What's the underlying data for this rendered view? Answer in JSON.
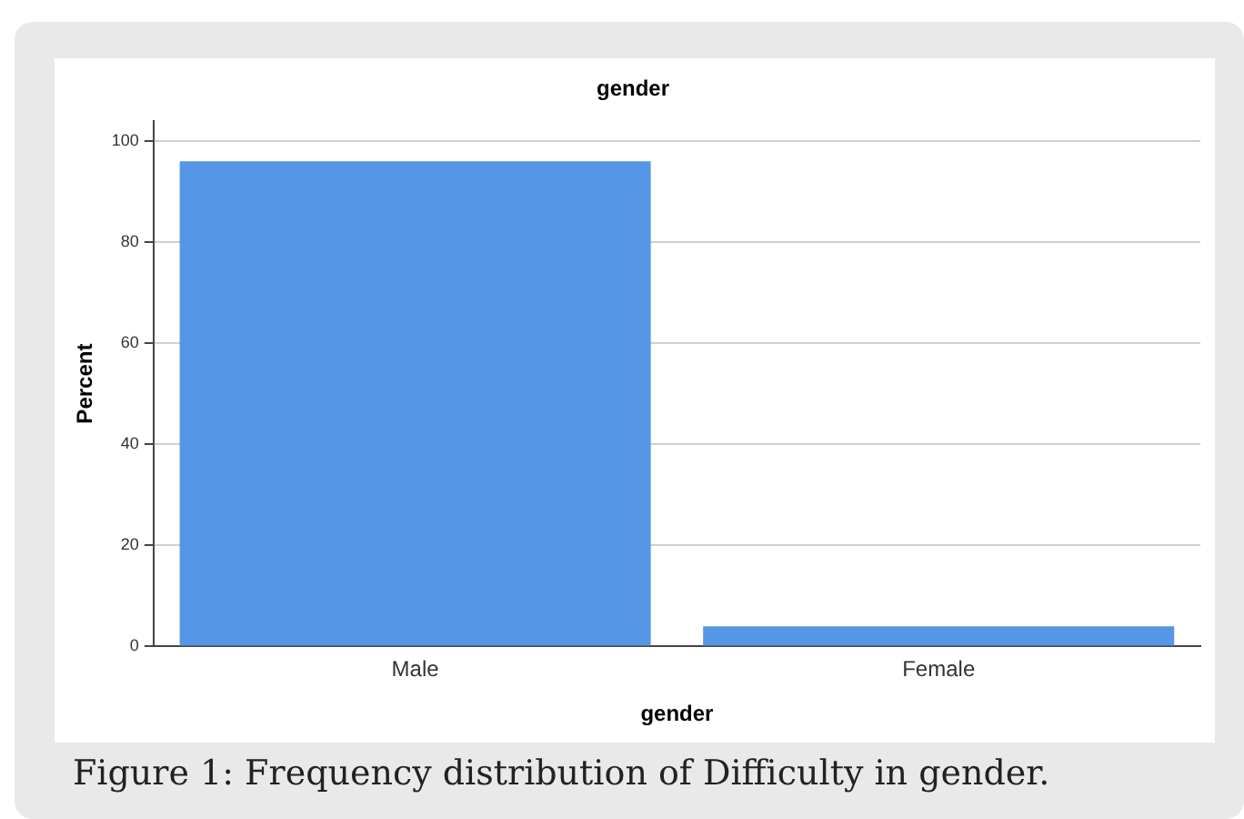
{
  "chart_data": {
    "type": "bar",
    "title": "gender",
    "xlabel": "gender",
    "ylabel": "Percent",
    "categories": [
      "Male",
      "Female"
    ],
    "values": [
      96,
      4
    ],
    "color": "#5596e6",
    "ylim": [
      0,
      104
    ],
    "yticks": [
      0,
      20,
      40,
      60,
      80,
      100
    ],
    "grid": "y",
    "annotations": [
      "Figure 1: Frequency distribution of Difficulty in gender."
    ]
  }
}
